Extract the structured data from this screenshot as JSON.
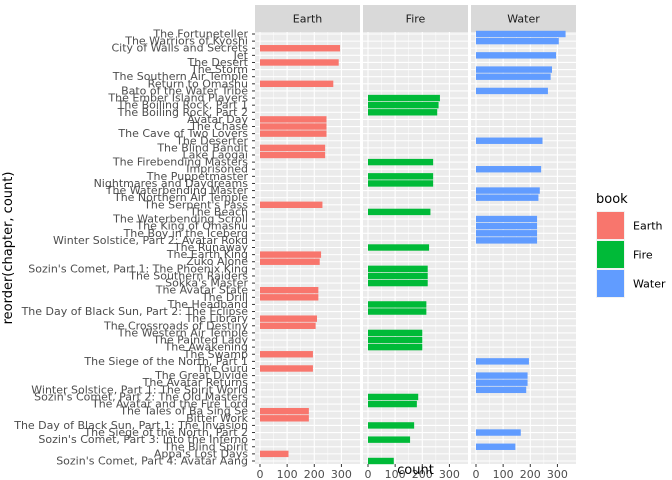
{
  "chart_data": {
    "type": "bar",
    "orientation": "horizontal",
    "xlabel": "count",
    "ylabel": "reorder(chapter, count)",
    "xlim": [
      0,
      350
    ],
    "xticks": [
      0,
      100,
      200,
      300
    ],
    "grid": true,
    "legend_position": "right",
    "legend_title": "book",
    "facets": [
      "Earth",
      "Fire",
      "Water"
    ],
    "colors": {
      "Earth": "#F8766D",
      "Fire": "#00BA38",
      "Water": "#619CFF"
    },
    "rows": [
      {
        "label": "The Fortuneteller",
        "book": "Water",
        "value": 330
      },
      {
        "label": "The Warriors of Kyoshi",
        "book": "Water",
        "value": 305
      },
      {
        "label": "City of Walls and Secrets",
        "book": "Earth",
        "value": 295
      },
      {
        "label": "Jet",
        "book": "Water",
        "value": 295
      },
      {
        "label": "The Desert",
        "book": "Earth",
        "value": 290
      },
      {
        "label": "The Storm",
        "book": "Water",
        "value": 280
      },
      {
        "label": "The Southern Air Temple",
        "book": "Water",
        "value": 275
      },
      {
        "label": "Return to Omashu",
        "book": "Earth",
        "value": 270
      },
      {
        "label": "Bato of the Water Tribe",
        "book": "Water",
        "value": 265
      },
      {
        "label": "The Ember Island Players",
        "book": "Fire",
        "value": 265
      },
      {
        "label": "The Boiling Rock, Part 1",
        "book": "Fire",
        "value": 260
      },
      {
        "label": "The Boiling Rock, Part 2",
        "book": "Fire",
        "value": 255
      },
      {
        "label": "Avatar Day",
        "book": "Earth",
        "value": 245
      },
      {
        "label": "The Chase",
        "book": "Earth",
        "value": 245
      },
      {
        "label": "The Cave of Two Lovers",
        "book": "Earth",
        "value": 245
      },
      {
        "label": "The Deserter",
        "book": "Water",
        "value": 245
      },
      {
        "label": "The Blind Bandit",
        "book": "Earth",
        "value": 240
      },
      {
        "label": "Lake Laogai",
        "book": "Earth",
        "value": 240
      },
      {
        "label": "The Firebending Masters",
        "book": "Fire",
        "value": 240
      },
      {
        "label": "Imprisoned",
        "book": "Water",
        "value": 240
      },
      {
        "label": "The Puppetmaster",
        "book": "Fire",
        "value": 240
      },
      {
        "label": "Nightmares and Daydreams",
        "book": "Fire",
        "value": 240
      },
      {
        "label": "The Waterbending Master",
        "book": "Water",
        "value": 235
      },
      {
        "label": "The Northern Air Temple",
        "book": "Water",
        "value": 230
      },
      {
        "label": "The Serpent's Pass",
        "book": "Earth",
        "value": 230
      },
      {
        "label": "The Beach",
        "book": "Fire",
        "value": 230
      },
      {
        "label": "The Waterbending Scroll",
        "book": "Water",
        "value": 225
      },
      {
        "label": "The King of Omashu",
        "book": "Water",
        "value": 225
      },
      {
        "label": "The Boy in the Iceberg",
        "book": "Water",
        "value": 225
      },
      {
        "label": "Winter Solstice, Part 2: Avatar Roku",
        "book": "Water",
        "value": 225
      },
      {
        "label": "The Runaway",
        "book": "Fire",
        "value": 225
      },
      {
        "label": "The Earth King",
        "book": "Earth",
        "value": 225
      },
      {
        "label": "Zuko Alone",
        "book": "Earth",
        "value": 220
      },
      {
        "label": "Sozin's Comet, Part 1: The Phoenix King",
        "book": "Fire",
        "value": 220
      },
      {
        "label": "The Southern Raiders",
        "book": "Fire",
        "value": 220
      },
      {
        "label": "Sokka's Master",
        "book": "Fire",
        "value": 220
      },
      {
        "label": "The Avatar State",
        "book": "Earth",
        "value": 215
      },
      {
        "label": "The Drill",
        "book": "Earth",
        "value": 215
      },
      {
        "label": "The Headband",
        "book": "Fire",
        "value": 215
      },
      {
        "label": "The Day of Black Sun, Part 2: The Eclipse",
        "book": "Fire",
        "value": 215
      },
      {
        "label": "The Library",
        "book": "Earth",
        "value": 210
      },
      {
        "label": "The Crossroads of Destiny",
        "book": "Earth",
        "value": 205
      },
      {
        "label": "The Western Air Temple",
        "book": "Fire",
        "value": 200
      },
      {
        "label": "The Painted Lady",
        "book": "Fire",
        "value": 200
      },
      {
        "label": "The Awakening",
        "book": "Fire",
        "value": 200
      },
      {
        "label": "The Swamp",
        "book": "Earth",
        "value": 195
      },
      {
        "label": "The Siege of the North, Part 1",
        "book": "Water",
        "value": 195
      },
      {
        "label": "The Guru",
        "book": "Earth",
        "value": 195
      },
      {
        "label": "The Great Divide",
        "book": "Water",
        "value": 190
      },
      {
        "label": "The Avatar Returns",
        "book": "Water",
        "value": 190
      },
      {
        "label": "Winter Solstice, Part 1: The Spirit World",
        "book": "Water",
        "value": 185
      },
      {
        "label": "Sozin's Comet, Part 2: The Old Masters",
        "book": "Fire",
        "value": 185
      },
      {
        "label": "The Avatar and the Fire Lord",
        "book": "Fire",
        "value": 180
      },
      {
        "label": "The Tales of Ba Sing Se",
        "book": "Earth",
        "value": 180
      },
      {
        "label": "Bitter Work",
        "book": "Earth",
        "value": 180
      },
      {
        "label": "The Day of Black Sun, Part 1: The Invasion",
        "book": "Fire",
        "value": 170
      },
      {
        "label": "The Siege of the North, Part 2",
        "book": "Water",
        "value": 165
      },
      {
        "label": "Sozin's Comet, Part 3: Into the Inferno",
        "book": "Fire",
        "value": 155
      },
      {
        "label": "The Blind Spirit",
        "book": "Water",
        "value": 145
      },
      {
        "label": "Appa's Lost Days",
        "book": "Earth",
        "value": 105
      },
      {
        "label": "Sozin's Comet, Part 4: Avatar Aang",
        "book": "Fire",
        "value": 95
      }
    ]
  }
}
